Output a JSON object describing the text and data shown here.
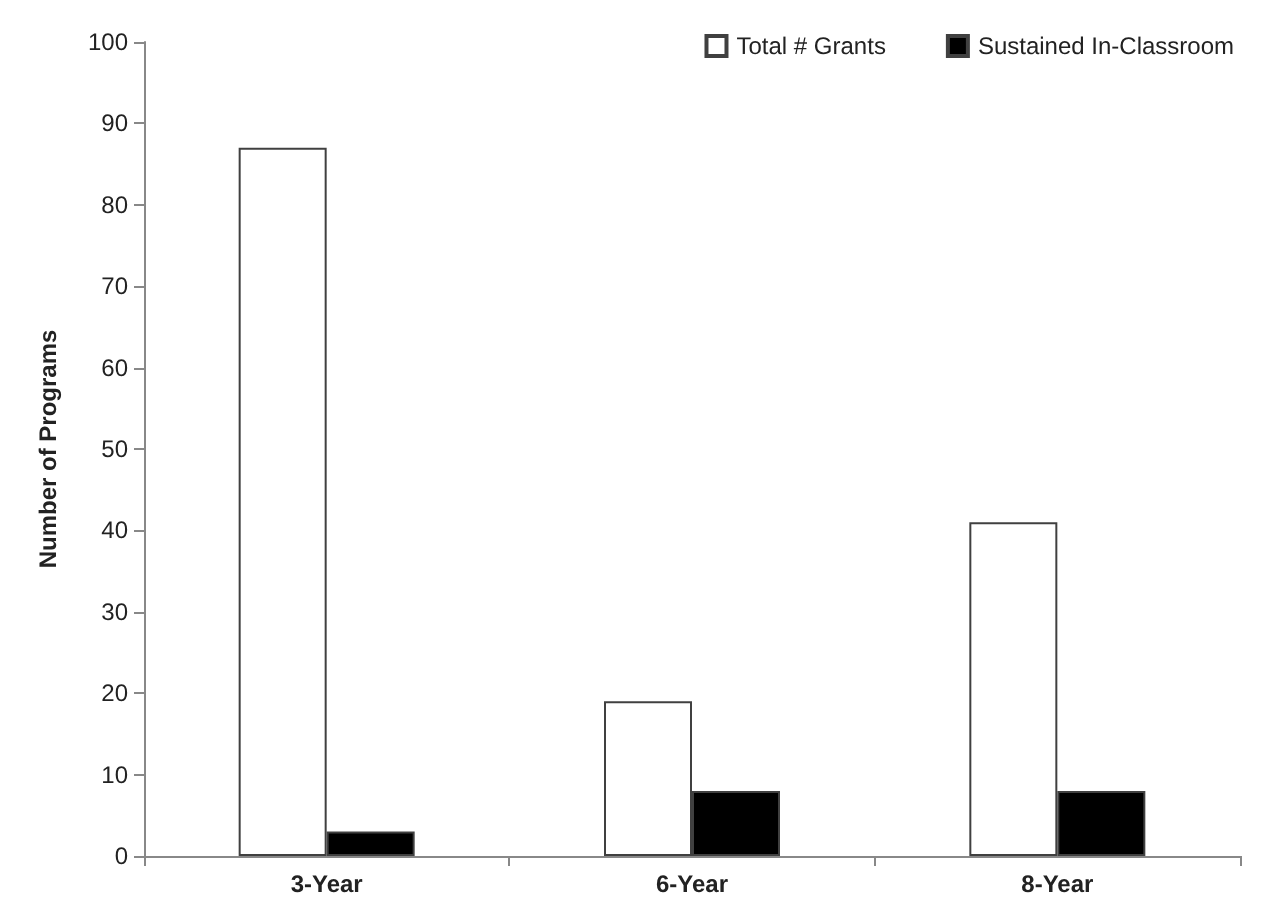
{
  "chart_data": {
    "type": "bar",
    "ylabel": "Number of Programs",
    "categories": [
      "3-Year",
      "6-Year",
      "8-Year"
    ],
    "series": [
      {
        "name": "Total # Grants",
        "color": "#ffffff",
        "values": [
          87,
          19,
          41
        ]
      },
      {
        "name": "Sustained In-Classroom",
        "color": "#000000",
        "values": [
          3,
          8,
          8
        ]
      }
    ],
    "ylim": [
      0,
      100
    ],
    "yticks": [
      0,
      10,
      20,
      30,
      40,
      50,
      60,
      70,
      80,
      90,
      100
    ],
    "grid": false,
    "legend": "top right"
  }
}
